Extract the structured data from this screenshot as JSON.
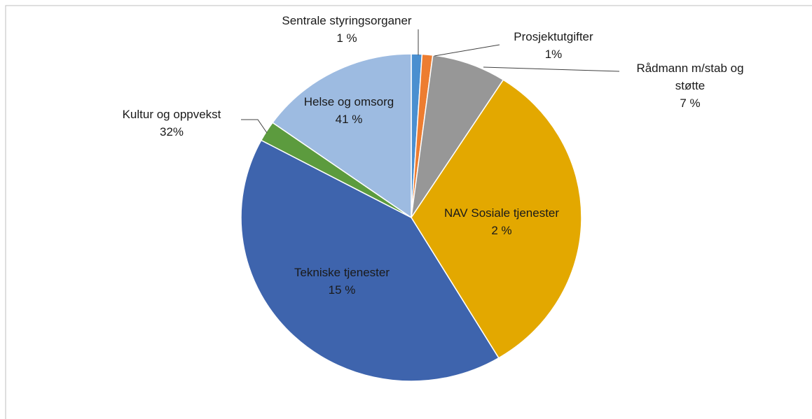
{
  "chart_data": {
    "type": "pie",
    "categories": [
      "Sentrale styringsorganer",
      "Prosjektutgifter",
      "Rådmann m/stab og støtte",
      "Kultur og oppvekst",
      "Helse og omsorg",
      "NAV Sosiale tjenester",
      "Tekniske tjenester"
    ],
    "values": [
      1,
      1,
      7,
      32,
      41,
      2,
      15
    ],
    "value_labels": [
      "1 %",
      "1%",
      "7 %",
      "32%",
      "41 %",
      "2 %",
      "15 %"
    ],
    "colors": [
      "#4a8fd0",
      "#ed7d31",
      "#979797",
      "#e3a800",
      "#3e64ad",
      "#5c9b3e",
      "#9dbbe1"
    ]
  }
}
